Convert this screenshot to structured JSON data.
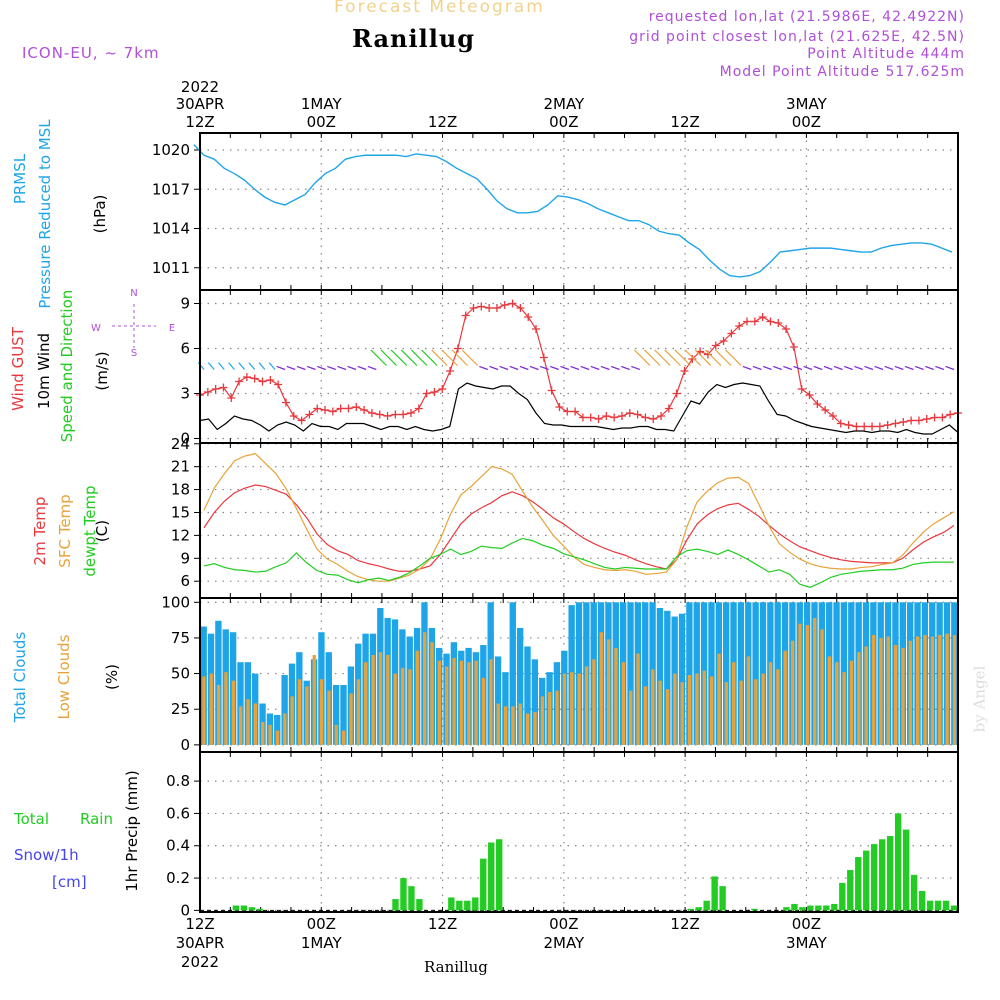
{
  "header": {
    "app_title": "Forecast Meteogram",
    "station": "Ranillug",
    "model": "ICON-EU, ~ 7km",
    "requested": "requested lon,lat (21.5986E, 42.4922N)",
    "grid_point": "grid point closest lon,lat (21.625E, 42.5N)",
    "point_altitude": "Point Altitude 444m",
    "model_altitude": "Model Point Altitude 517.625m",
    "footer_station": "Ranillug",
    "watermark": "by Angel"
  },
  "colors": {
    "purple": "#b04fd8",
    "blue": "#1ea5e8",
    "red": "#e8383d",
    "orange": "#e8a23a",
    "green": "#22cc22",
    "black": "#000000",
    "snow_blue": "#4444ee",
    "violet_arrow": "#7a2ad8"
  },
  "panel_labels": {
    "prmsl": [
      "PRMSL",
      "Pressure Reduced to MSL",
      "(hPa)"
    ],
    "wind": [
      "Wind GUST",
      "10m Wind",
      "Speed and Direction",
      "(m/s)"
    ],
    "compass": {
      "n": "N",
      "s": "S",
      "w": "W",
      "e": "E"
    },
    "temp": [
      "2m Temp",
      "SFC Temp",
      "dewpt Temp",
      "(C)"
    ],
    "clouds": [
      "Total Clouds",
      "Low Clouds",
      "(%)"
    ],
    "precip": [
      "Total",
      "Rain",
      "Snow/1h",
      "[cm]",
      "1hr Precip (mm)"
    ]
  },
  "time_axis": {
    "top_year": "2022",
    "bottom_year": "2022",
    "ticks": [
      {
        "hour": 12,
        "l1": "30APR",
        "l2": "12Z",
        "b1": "12Z",
        "b2": "30APR"
      },
      {
        "hour": 24,
        "l1": "1MAY",
        "l2": "00Z",
        "b1": "00Z",
        "b2": "1MAY"
      },
      {
        "hour": 36,
        "l1": "",
        "l2": "12Z",
        "b1": "12Z",
        "b2": ""
      },
      {
        "hour": 48,
        "l1": "2MAY",
        "l2": "00Z",
        "b1": "00Z",
        "b2": "2MAY"
      },
      {
        "hour": 60,
        "l1": "",
        "l2": "12Z",
        "b1": "12Z",
        "b2": ""
      },
      {
        "hour": 72,
        "l1": "3MAY",
        "l2": "00Z",
        "b1": "00Z",
        "b2": "3MAY"
      }
    ]
  },
  "chart_data": [
    {
      "type": "line",
      "title": "PRMSL Pressure Reduced to MSL",
      "ylabel": "(hPa)",
      "ylim": [
        1009.3,
        1021.3
      ],
      "yticks": [
        1011,
        1014,
        1017,
        1020
      ],
      "x_hours_start": 12,
      "series": [
        {
          "name": "PRMSL",
          "color": "#1ea5e8",
          "values": [
            1020.4,
            1019.6,
            1019.3,
            1018.6,
            1018.2,
            1017.7,
            1017.0,
            1016.4,
            1016.0,
            1015.8,
            1016.2,
            1016.6,
            1017.5,
            1018.2,
            1018.6,
            1019.3,
            1019.5,
            1019.6,
            1019.6,
            1019.6,
            1019.6,
            1019.5,
            1019.7,
            1019.6,
            1019.5,
            1019.1,
            1018.6,
            1018.2,
            1017.8,
            1017.0,
            1016.1,
            1015.5,
            1015.2,
            1015.2,
            1015.3,
            1015.8,
            1016.5,
            1016.4,
            1016.2,
            1015.9,
            1015.5,
            1015.2,
            1014.9,
            1014.6,
            1014.6,
            1014.3,
            1013.8,
            1013.6,
            1013.5,
            1012.9,
            1012.4,
            1011.6,
            1010.9,
            1010.4,
            1010.3,
            1010.4,
            1010.7,
            1011.4,
            1012.2,
            1012.3,
            1012.4,
            1012.5,
            1012.5,
            1012.5,
            1012.4,
            1012.3,
            1012.2,
            1012.2,
            1012.5,
            1012.7,
            1012.8,
            1012.9,
            1012.9,
            1012.8,
            1012.5,
            1012.2
          ]
        }
      ]
    },
    {
      "type": "line",
      "title": "Wind GUST / 10m Wind Speed and Direction",
      "ylabel": "(m/s)",
      "ylim": [
        -0.3,
        9.9
      ],
      "yticks": [
        0,
        3,
        6,
        9
      ],
      "x_hours_start": 12,
      "series": [
        {
          "name": "Wind GUST",
          "color": "#e8383d",
          "marker": "+",
          "values": [
            2.9,
            3.1,
            3.3,
            3.4,
            2.7,
            3.8,
            4.1,
            4.0,
            3.8,
            3.9,
            3.6,
            2.4,
            1.5,
            1.2,
            1.6,
            2.0,
            1.9,
            1.8,
            2.0,
            2.0,
            2.1,
            1.9,
            1.7,
            1.6,
            1.5,
            1.6,
            1.6,
            1.7,
            2.0,
            3.0,
            3.1,
            3.3,
            4.5,
            6.0,
            8.2,
            8.7,
            8.8,
            8.7,
            8.7,
            8.9,
            9.0,
            8.7,
            8.1,
            7.3,
            5.4,
            3.2,
            2.1,
            1.8,
            1.8,
            1.4,
            1.4,
            1.3,
            1.5,
            1.4,
            1.5,
            1.7,
            1.6,
            1.4,
            1.3,
            1.5,
            2.0,
            3.0,
            4.5,
            5.3,
            5.8,
            5.6,
            6.2,
            6.5,
            7.0,
            7.5,
            7.8,
            7.8,
            8.1,
            7.8,
            7.7,
            7.3,
            6.1,
            3.3,
            2.9,
            2.3,
            1.9,
            1.5,
            1.0,
            0.9,
            0.8,
            0.8,
            0.8,
            0.8,
            0.9,
            1.0,
            1.1,
            1.2,
            1.2,
            1.3,
            1.4,
            1.4,
            1.6,
            1.7
          ]
        },
        {
          "name": "10m Wind",
          "color": "#000000",
          "values": [
            1.2,
            1.3,
            0.6,
            1.0,
            1.5,
            1.3,
            1.2,
            0.9,
            0.5,
            0.9,
            1.1,
            0.9,
            0.5,
            1.0,
            0.8,
            0.8,
            0.6,
            1.0,
            1.0,
            1.0,
            0.8,
            0.6,
            0.8,
            0.8,
            0.6,
            0.8,
            0.6,
            0.5,
            0.6,
            0.8,
            3.3,
            3.7,
            3.5,
            3.4,
            3.3,
            3.5,
            3.5,
            3.0,
            2.6,
            1.7,
            1.0,
            0.9,
            0.9,
            0.8,
            0.8,
            0.8,
            0.8,
            0.7,
            0.6,
            0.7,
            0.7,
            0.8,
            0.8,
            0.6,
            0.6,
            0.5,
            1.5,
            2.5,
            2.3,
            3.1,
            3.6,
            3.4,
            3.6,
            3.7,
            3.6,
            3.5,
            2.5,
            1.6,
            1.5,
            1.2,
            1.0,
            0.8,
            0.7,
            0.6,
            0.5,
            0.4,
            0.5,
            0.5,
            0.4,
            0.5,
            0.5,
            0.4,
            0.6,
            0.4,
            0.3,
            0.3,
            0.6,
            0.9,
            0.4
          ]
        }
      ]
    },
    {
      "type": "line",
      "title": "2m Temp / SFC Temp / dewpt Temp",
      "ylabel": "(C)",
      "ylim": [
        3.8,
        24.1
      ],
      "yticks": [
        6,
        9,
        12,
        15,
        18,
        21,
        24
      ],
      "x_hours_start": 12,
      "series": [
        {
          "name": "2m Temp",
          "color": "#e8383d",
          "values": [
            13.0,
            15.0,
            16.5,
            17.6,
            18.2,
            18.6,
            18.4,
            17.9,
            17.4,
            16.0,
            14.3,
            12.2,
            10.8,
            10.0,
            9.5,
            8.7,
            8.3,
            8.0,
            7.6,
            7.3,
            7.3,
            7.6,
            8.0,
            9.5,
            11.5,
            13.5,
            14.8,
            15.6,
            16.3,
            17.2,
            17.7,
            17.2,
            16.4,
            15.4,
            14.3,
            13.5,
            12.5,
            11.6,
            10.9,
            10.3,
            9.8,
            9.4,
            8.8,
            8.3,
            7.9,
            7.6,
            8.8,
            11.4,
            13.5,
            14.7,
            15.5,
            16.0,
            16.2,
            15.4,
            14.5,
            13.3,
            12.2,
            11.3,
            10.5,
            10.0,
            9.5,
            9.1,
            8.8,
            8.6,
            8.5,
            8.4,
            8.4,
            8.4,
            9.0,
            10.1,
            11.1,
            11.8,
            12.4,
            13.3
          ]
        },
        {
          "name": "SFC Temp",
          "color": "#e8a23a",
          "values": [
            15.3,
            18.2,
            20.1,
            21.8,
            22.4,
            22.7,
            21.4,
            20.1,
            18.1,
            15.5,
            12.8,
            10.2,
            8.9,
            8.2,
            7.3,
            6.6,
            6.2,
            6.0,
            6.0,
            6.4,
            6.8,
            7.6,
            8.9,
            11.5,
            14.8,
            17.3,
            18.4,
            19.7,
            21.0,
            20.7,
            20.0,
            17.8,
            15.7,
            13.9,
            12.0,
            10.6,
            9.2,
            8.2,
            7.8,
            7.5,
            7.4,
            7.5,
            7.3,
            6.9,
            7.0,
            7.2,
            8.8,
            13.1,
            16.4,
            17.8,
            18.9,
            19.5,
            19.6,
            18.8,
            16.1,
            13.2,
            10.9,
            9.8,
            8.9,
            8.3,
            7.9,
            7.7,
            7.6,
            7.6,
            7.8,
            7.9,
            8.2,
            8.4,
            9.4,
            11.0,
            12.4,
            13.5,
            14.3,
            15.1
          ]
        },
        {
          "name": "dewpt Temp",
          "color": "#22cc22",
          "values": [
            8.0,
            8.3,
            7.8,
            7.5,
            7.4,
            7.2,
            7.3,
            7.9,
            8.4,
            9.7,
            8.4,
            7.4,
            6.9,
            6.8,
            6.2,
            5.8,
            6.2,
            6.4,
            6.1,
            6.5,
            7.1,
            8.0,
            9.0,
            9.5,
            10.2,
            9.5,
            9.9,
            10.6,
            10.4,
            10.3,
            11.0,
            11.6,
            11.3,
            10.7,
            10.3,
            9.6,
            9.2,
            8.8,
            8.3,
            7.8,
            7.6,
            7.8,
            7.7,
            7.6,
            7.6,
            7.6,
            9.2,
            10.0,
            10.2,
            9.9,
            9.5,
            10.1,
            9.5,
            8.8,
            8.0,
            7.2,
            7.5,
            6.9,
            5.6,
            5.2,
            5.8,
            6.5,
            6.9,
            7.1,
            7.3,
            7.4,
            7.5,
            7.5,
            7.7,
            8.2,
            8.4,
            8.5,
            8.5,
            8.5
          ]
        }
      ]
    },
    {
      "type": "bar",
      "title": "Total Clouds / Low Clouds",
      "ylabel": "(%)",
      "ylim": [
        -5,
        103
      ],
      "yticks": [
        0,
        25,
        50,
        75,
        100
      ],
      "x_hours_start": 12,
      "series": [
        {
          "name": "Total Clouds",
          "color": "#1ea5e8",
          "values": [
            83,
            78,
            87,
            81,
            79,
            58,
            58,
            50,
            29,
            22,
            21,
            49,
            57,
            65,
            45,
            60,
            79,
            65,
            42,
            42,
            55,
            71,
            78,
            78,
            96,
            89,
            88,
            81,
            76,
            82,
            100,
            82,
            68,
            64,
            72,
            66,
            68,
            65,
            70,
            100,
            62,
            51,
            100,
            82,
            69,
            60,
            47,
            51,
            58,
            66,
            98,
            100,
            100,
            100,
            100,
            100,
            100,
            100,
            100,
            100,
            100,
            100,
            96,
            94,
            90,
            92,
            100,
            100,
            100,
            100,
            100,
            100,
            100,
            100,
            100,
            100,
            100,
            100,
            100,
            100,
            100,
            100,
            100,
            100,
            100,
            100,
            100,
            100,
            100,
            100,
            100,
            100,
            100,
            100,
            100,
            100,
            100,
            100,
            100,
            100,
            100,
            100,
            100
          ]
        },
        {
          "name": "Low Clouds",
          "color": "#e8a23a",
          "values": [
            48,
            50,
            42,
            51,
            45,
            27,
            32,
            29,
            16,
            14,
            10,
            22,
            34,
            46,
            41,
            63,
            46,
            38,
            14,
            10,
            36,
            46,
            58,
            63,
            65,
            63,
            50,
            54,
            53,
            66,
            79,
            72,
            59,
            55,
            61,
            59,
            58,
            59,
            47,
            60,
            29,
            27,
            27,
            29,
            22,
            23,
            34,
            37,
            38,
            50,
            51,
            50,
            55,
            60,
            79,
            74,
            68,
            58,
            38,
            64,
            41,
            53,
            45,
            39,
            50,
            44,
            49,
            50,
            52,
            48,
            64,
            44,
            58,
            45,
            62,
            46,
            50,
            58,
            53,
            66,
            73,
            85,
            84,
            89,
            81,
            62,
            58,
            51,
            59,
            65,
            69,
            77,
            75,
            76,
            70,
            68,
            73,
            76,
            77,
            76,
            77,
            78,
            77
          ]
        }
      ]
    },
    {
      "type": "bar",
      "title": "Total Rain / Snow 1h",
      "ylabel": "1hr Precip (mm)",
      "ylim": [
        -0.01,
        0.98
      ],
      "yticks": [
        0,
        0.2,
        0.4,
        0.6,
        0.8
      ],
      "ytick_labels": [
        "0",
        "0.2",
        "0.4",
        "0.6",
        "0.8"
      ],
      "x_hours_start": 12,
      "series": [
        {
          "name": "Total Rain",
          "color": "#22cc22",
          "values": [
            0,
            0,
            0,
            0,
            0.03,
            0.03,
            0.02,
            0.01,
            0,
            0,
            0,
            0,
            0,
            0,
            0,
            0,
            0,
            0,
            0,
            0,
            0,
            0,
            0,
            0,
            0.07,
            0.2,
            0.15,
            0.07,
            0,
            0,
            0,
            0.08,
            0.06,
            0.06,
            0.08,
            0.32,
            0.42,
            0.44,
            0,
            0,
            0,
            0,
            0,
            0,
            0,
            0,
            0,
            0,
            0,
            0,
            0,
            0,
            0,
            0,
            0,
            0,
            0,
            0,
            0,
            0,
            0,
            0.01,
            0.02,
            0.06,
            0.21,
            0.15,
            0,
            0,
            0,
            0.01,
            0,
            0,
            0,
            0.02,
            0.04,
            0.02,
            0.03,
            0.03,
            0.03,
            0.04,
            0.17,
            0.25,
            0.33,
            0.37,
            0.41,
            0.44,
            0.46,
            0.6,
            0.5,
            0.22,
            0.12,
            0.06,
            0.06,
            0.06,
            0.03
          ]
        }
      ]
    }
  ]
}
